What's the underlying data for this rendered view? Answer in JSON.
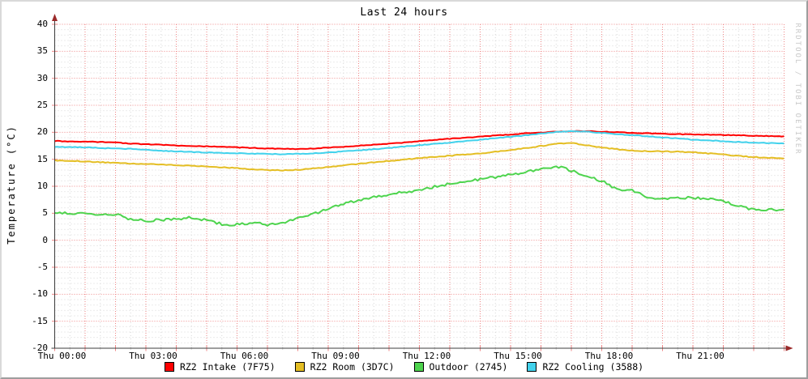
{
  "title": "Last 24 hours",
  "ylabel": "Temperature (°C)",
  "watermark": "RRDTOOL / TOBI OETIKER",
  "colors": {
    "background": "#ffffff",
    "major_grid": "#ef8686",
    "minor_grid": "#d7d7d7",
    "axis": "#3c3c3c",
    "arrow": "#9b2a2a",
    "text": "#000000",
    "watermark": "#c9c9c9"
  },
  "chart_data": {
    "type": "line",
    "title": "Last 24 hours",
    "xlabel": "",
    "ylabel": "Temperature (°C)",
    "x_unit": "hours",
    "x_range": [
      0,
      24
    ],
    "x_step": 0.5,
    "ylim": [
      -20,
      40
    ],
    "y_major_step": 5,
    "y_minor_step": 1,
    "x_major_step": 1,
    "x_minor_step": 0.5,
    "grid": true,
    "legend_position": "bottom-center",
    "y_tick_values": [
      40,
      35,
      30,
      25,
      20,
      15,
      10,
      5,
      0,
      -5,
      -10,
      -15,
      -20
    ],
    "x_tick_labels": [
      {
        "h": 0,
        "label": "Thu 00:00"
      },
      {
        "h": 3,
        "label": "Thu 03:00"
      },
      {
        "h": 6,
        "label": "Thu 06:00"
      },
      {
        "h": 9,
        "label": "Thu 09:00"
      },
      {
        "h": 12,
        "label": "Thu 12:00"
      },
      {
        "h": 15,
        "label": "Thu 15:00"
      },
      {
        "h": 18,
        "label": "Thu 18:00"
      },
      {
        "h": 21,
        "label": "Thu 21:00"
      }
    ],
    "series": [
      {
        "name": "RZ2 Intake (7F75)",
        "color": "#ff0000",
        "jitter": 0.06,
        "values": [
          18.4,
          18.3,
          18.25,
          18.2,
          18.1,
          17.9,
          17.8,
          17.7,
          17.55,
          17.45,
          17.4,
          17.3,
          17.2,
          17.1,
          17.0,
          16.95,
          16.9,
          17.0,
          17.15,
          17.3,
          17.5,
          17.7,
          17.9,
          18.1,
          18.35,
          18.6,
          18.8,
          19.0,
          19.2,
          19.4,
          19.6,
          19.8,
          19.95,
          20.1,
          20.2,
          20.2,
          20.1,
          20.0,
          19.9,
          19.8,
          19.75,
          19.65,
          19.6,
          19.55,
          19.5,
          19.45,
          19.35,
          19.3,
          19.25
        ]
      },
      {
        "name": "RZ2 Room (3D7C)",
        "color": "#e4be24",
        "jitter": 0.08,
        "values": [
          14.8,
          14.7,
          14.6,
          14.45,
          14.3,
          14.2,
          14.1,
          14.0,
          13.9,
          13.8,
          13.7,
          13.5,
          13.35,
          13.15,
          13.0,
          12.95,
          13.05,
          13.3,
          13.55,
          13.85,
          14.15,
          14.45,
          14.7,
          14.95,
          15.2,
          15.45,
          15.65,
          15.9,
          16.1,
          16.4,
          16.7,
          17.05,
          17.45,
          17.85,
          18.0,
          17.6,
          17.2,
          16.85,
          16.6,
          16.5,
          16.45,
          16.4,
          16.3,
          16.1,
          15.85,
          15.6,
          15.4,
          15.25,
          15.15
        ]
      },
      {
        "name": "Outdoor (2745)",
        "color": "#4ed44e",
        "jitter": 0.24,
        "values": [
          5.2,
          4.9,
          5.0,
          4.6,
          4.8,
          3.9,
          3.6,
          3.8,
          3.9,
          4.2,
          3.7,
          3.0,
          2.9,
          3.3,
          2.9,
          3.2,
          4.2,
          4.8,
          5.9,
          6.8,
          7.4,
          8.0,
          8.5,
          8.9,
          9.3,
          9.9,
          10.4,
          10.9,
          11.3,
          11.7,
          12.1,
          12.6,
          13.2,
          13.7,
          12.9,
          11.8,
          11.0,
          9.4,
          9.3,
          7.9,
          7.8,
          7.8,
          7.9,
          7.7,
          7.2,
          6.3,
          5.7,
          5.6,
          5.7
        ]
      },
      {
        "name": "RZ2 Cooling (3588)",
        "color": "#42d2ec",
        "jitter": 0.07,
        "values": [
          17.3,
          17.25,
          17.2,
          17.1,
          17.0,
          16.9,
          16.75,
          16.6,
          16.45,
          16.35,
          16.25,
          16.15,
          16.1,
          16.05,
          16.0,
          15.95,
          16.0,
          16.1,
          16.25,
          16.45,
          16.65,
          16.85,
          17.1,
          17.35,
          17.6,
          17.85,
          18.1,
          18.35,
          18.6,
          18.9,
          19.15,
          19.45,
          19.75,
          20.05,
          20.2,
          20.1,
          19.9,
          19.65,
          19.45,
          19.25,
          19.05,
          18.85,
          18.65,
          18.5,
          18.35,
          18.2,
          18.1,
          18.0,
          17.9
        ]
      }
    ]
  }
}
